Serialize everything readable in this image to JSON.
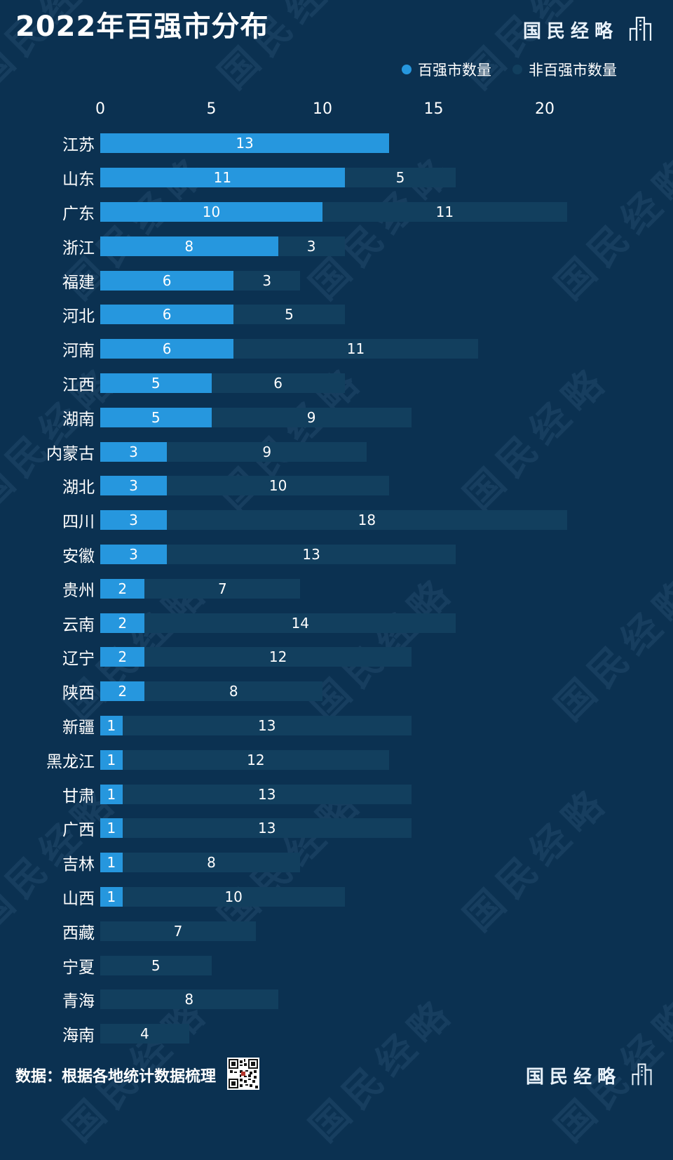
{
  "header": {
    "title": "2022年百强市分布",
    "brand": "国民经略"
  },
  "watermark": {
    "text": "国民经略"
  },
  "chart_data": {
    "type": "bar",
    "orientation": "horizontal",
    "stacked": true,
    "title": "2022年百强市分布",
    "x_ticks": [
      0,
      5,
      10,
      15,
      20
    ],
    "xlim": [
      0,
      24
    ],
    "grid": false,
    "legend_position": "top-right",
    "categories": [
      "江苏",
      "山东",
      "广东",
      "浙江",
      "福建",
      "河北",
      "河南",
      "江西",
      "湖南",
      "内蒙古",
      "湖北",
      "四川",
      "安徽",
      "贵州",
      "云南",
      "辽宁",
      "陕西",
      "新疆",
      "黑龙江",
      "甘肃",
      "广西",
      "吉林",
      "山西",
      "西藏",
      "宁夏",
      "青海",
      "海南"
    ],
    "series": [
      {
        "name": "百强市数量",
        "color": "#2697de",
        "values": [
          13,
          11,
          10,
          8,
          6,
          6,
          6,
          5,
          5,
          3,
          3,
          3,
          3,
          2,
          2,
          2,
          2,
          1,
          1,
          1,
          1,
          1,
          1,
          0,
          0,
          0,
          0
        ]
      },
      {
        "name": "非百强市数量",
        "color": "#123f5e",
        "values": [
          0,
          5,
          11,
          3,
          3,
          5,
          11,
          6,
          9,
          9,
          10,
          18,
          13,
          7,
          14,
          12,
          8,
          13,
          12,
          13,
          13,
          8,
          10,
          7,
          5,
          8,
          4
        ]
      }
    ]
  },
  "footer": {
    "source": "数据：根据各地统计数据梳理",
    "brand": "国民经略"
  }
}
